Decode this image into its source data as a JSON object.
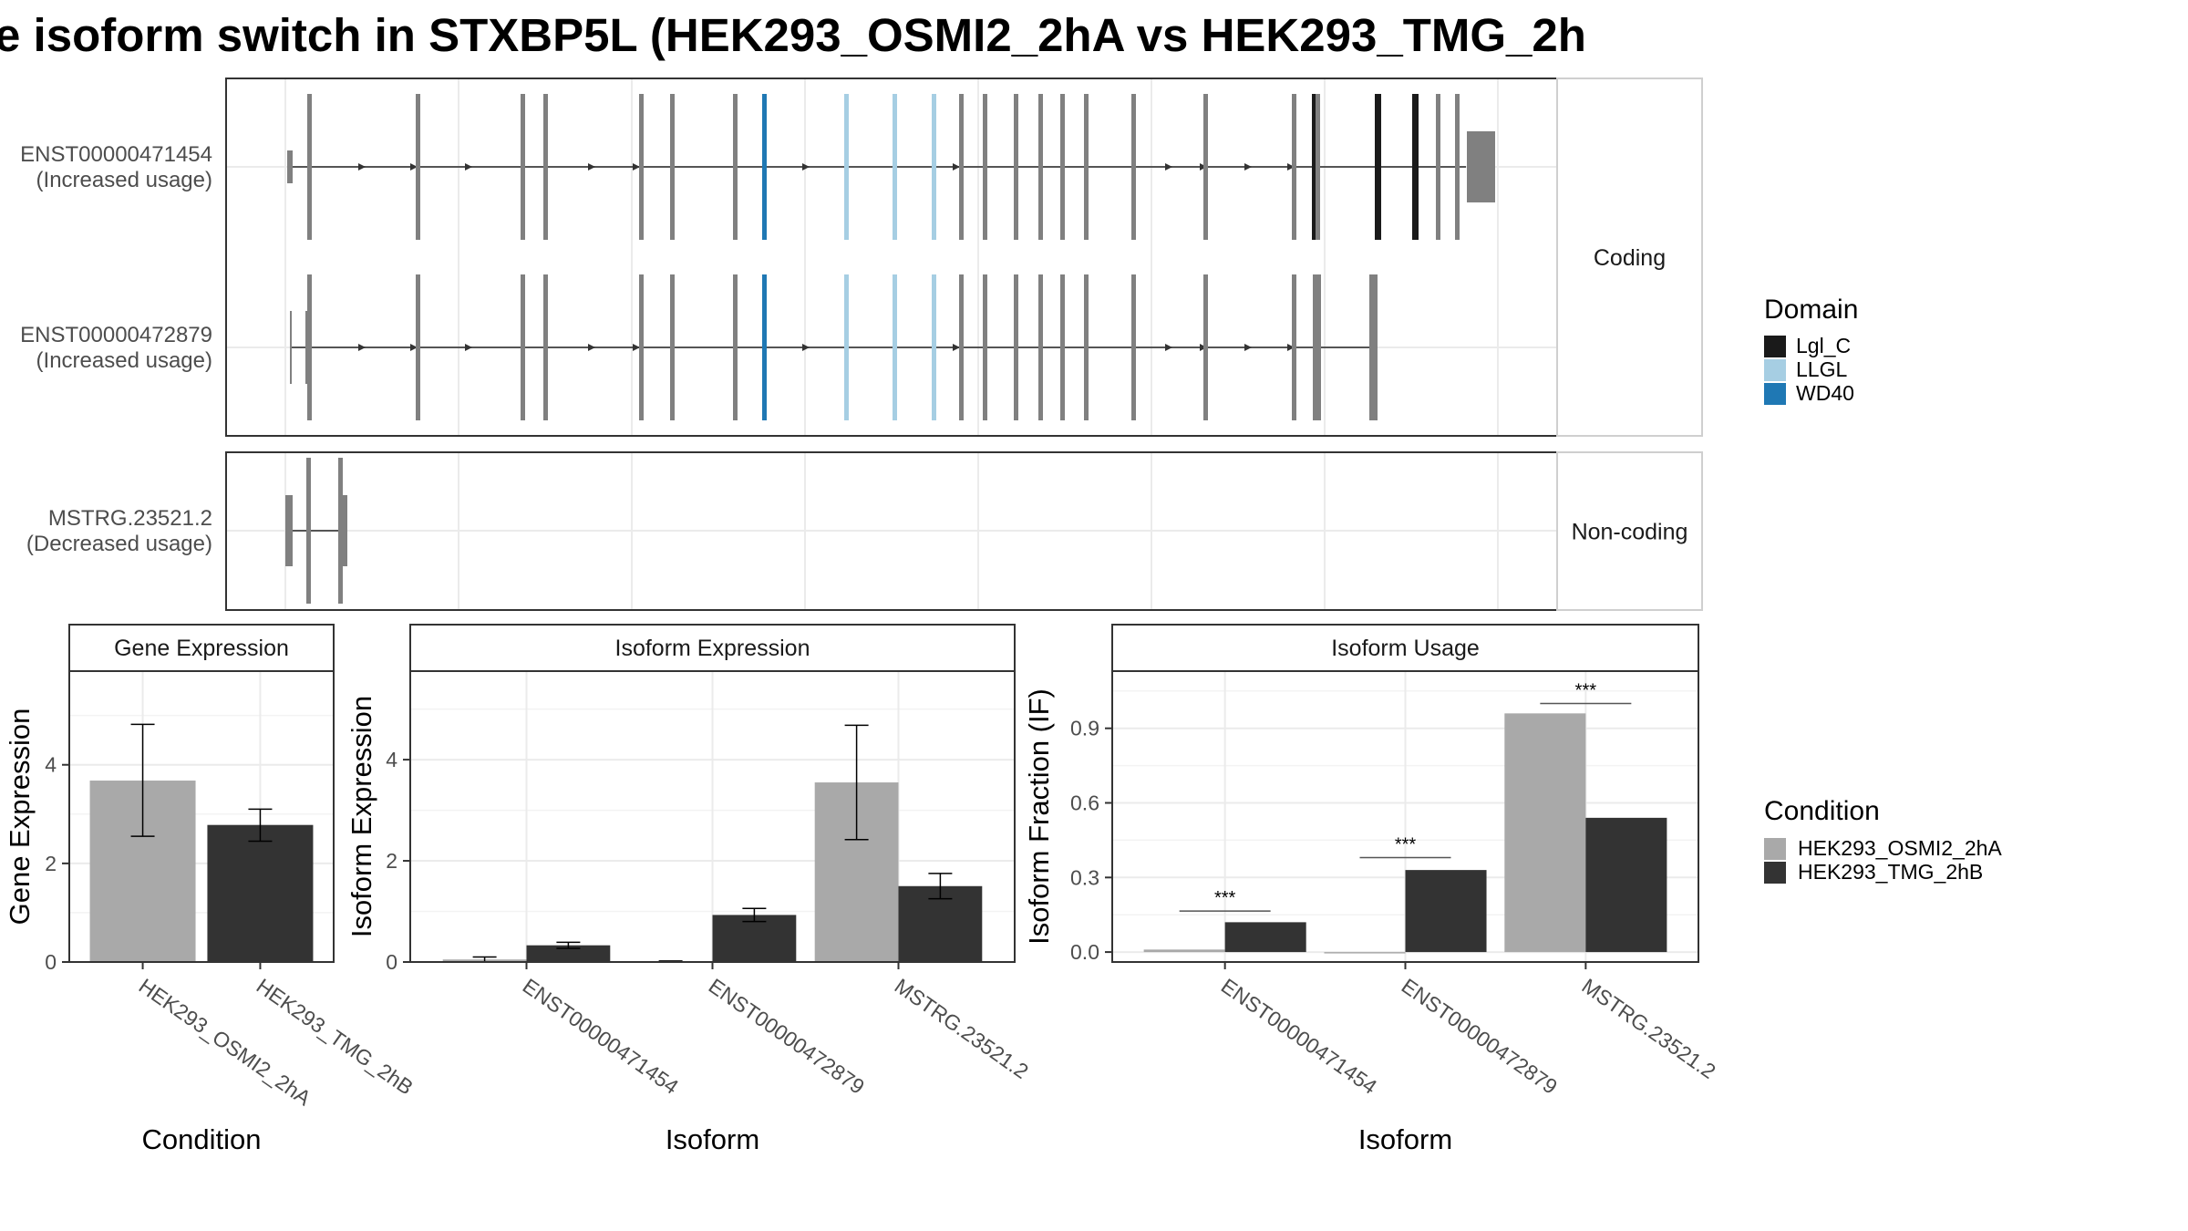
{
  "title": "e isoform switch in STXBP5L (HEK293_OSMI2_2hA vs HEK293_TMG_2h",
  "colors": {
    "panel_border": "#333333",
    "strip_fill": "#ffffff",
    "grid": "#ebebeb",
    "exon_default": "#808080",
    "condition_a": "#a9a9a9",
    "condition_b": "#333333"
  },
  "structure": {
    "facets": [
      {
        "label": "Coding",
        "isoforms": [
          {
            "name": "ENST00000471454",
            "change": "(Increased usage)"
          },
          {
            "name": "ENST00000472879",
            "change": "(Increased usage)"
          }
        ]
      },
      {
        "label": "Non-coding",
        "isoforms": [
          {
            "name": "MSTRG.23521.2",
            "change": "(Decreased usage)"
          }
        ]
      }
    ],
    "legend": {
      "title": "Domain",
      "items": [
        {
          "label": "Lgl_C",
          "color": "#1a1a1a"
        },
        {
          "label": "LLGL",
          "color": "#a6cee3"
        },
        {
          "label": "WD40",
          "color": "#1f78b4"
        }
      ]
    }
  },
  "chart_data": [
    {
      "type": "bar",
      "title": "Gene Expression",
      "xlabel": "Condition",
      "ylabel": "Gene Expression",
      "ylim": [
        0,
        5.9
      ],
      "yticks": [
        0,
        2,
        4
      ],
      "ytick_labels": [
        "0",
        "2",
        "4"
      ],
      "categories": [
        "HEK293_OSMI2_2hA",
        "HEK293_TMG_2hB"
      ],
      "series": [
        {
          "name": "HEK293_OSMI2_2hA",
          "values": [
            3.68,
            null
          ],
          "error_low": [
            2.55,
            null
          ],
          "error_high": [
            4.82,
            null
          ]
        },
        {
          "name": "HEK293_TMG_2hB",
          "values": [
            null,
            2.78
          ],
          "error_low": [
            null,
            2.45
          ],
          "error_high": [
            null,
            3.1
          ]
        }
      ]
    },
    {
      "type": "bar",
      "title": "Isoform Expression",
      "xlabel": "Isoform",
      "ylabel": "Isoform Expression",
      "ylim": [
        0,
        5.75
      ],
      "yticks": [
        0,
        2,
        4
      ],
      "ytick_labels": [
        "0",
        "2",
        "4"
      ],
      "categories": [
        "ENST00000471454",
        "ENST00000472879",
        "MSTRG.23521.2"
      ],
      "series": [
        {
          "name": "HEK293_OSMI2_2hA",
          "values": [
            0.05,
            0.01,
            3.55
          ],
          "error_low": [
            0.0,
            0.0,
            2.42
          ],
          "error_high": [
            0.1,
            0.02,
            4.68
          ]
        },
        {
          "name": "HEK293_TMG_2hB",
          "values": [
            0.33,
            0.93,
            1.5
          ],
          "error_low": [
            0.27,
            0.8,
            1.25
          ],
          "error_high": [
            0.39,
            1.06,
            1.75
          ]
        }
      ]
    },
    {
      "type": "bar",
      "title": "Isoform Usage",
      "xlabel": "Isoform",
      "ylabel": "Isoform Fraction (IF)",
      "ylim": [
        -0.04,
        1.13
      ],
      "yticks": [
        0.0,
        0.3,
        0.6,
        0.9
      ],
      "ytick_labels": [
        "0.0",
        "0.3",
        "0.6",
        "0.9"
      ],
      "categories": [
        "ENST00000471454",
        "ENST00000472879",
        "MSTRG.23521.2"
      ],
      "series": [
        {
          "name": "HEK293_OSMI2_2hA",
          "values": [
            0.01,
            0.0,
            0.96
          ]
        },
        {
          "name": "HEK293_TMG_2hB",
          "values": [
            0.12,
            0.33,
            0.54
          ]
        }
      ],
      "significance": [
        {
          "category": "ENST00000471454",
          "label": "***",
          "y": 0.165
        },
        {
          "category": "ENST00000472879",
          "label": "***",
          "y": 0.38
        },
        {
          "category": "MSTRG.23521.2",
          "label": "***",
          "y": 1.0
        }
      ]
    }
  ],
  "condition_legend": {
    "title": "Condition",
    "items": [
      {
        "label": "HEK293_OSMI2_2hA",
        "color": "#a9a9a9"
      },
      {
        "label": "HEK293_TMG_2hB",
        "color": "#333333"
      }
    ]
  }
}
